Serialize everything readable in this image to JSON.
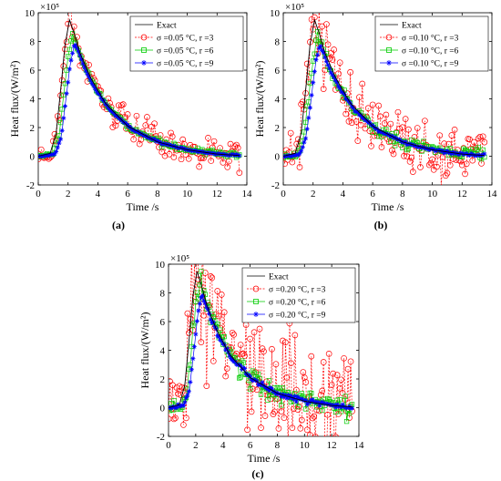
{
  "chart_data": [
    {
      "type": "line",
      "panel_label": "(a)",
      "xlabel": "Time /s",
      "ylabel": "Heat flux/(W/m²)",
      "exponent_label": "×10⁵",
      "xlim": [
        0,
        14
      ],
      "ylim": [
        -2,
        10
      ],
      "xticks": [
        0,
        2,
        4,
        6,
        8,
        10,
        12,
        14
      ],
      "yticks": [
        -2,
        0,
        2,
        4,
        6,
        8,
        10
      ],
      "noise": 0.05,
      "legend": [
        "Exact",
        "σ =0.05 °C, r =3",
        "σ =0.05 °C, r =6",
        "σ =0.05 °C, r =9"
      ],
      "exact_curve": {
        "x": [
          0,
          0.8,
          1.2,
          1.5,
          1.8,
          2.1,
          2.4,
          2.8,
          3.5,
          4.5,
          6,
          8,
          10,
          12,
          13.5
        ],
        "y": [
          0,
          0.2,
          1.6,
          4.6,
          7.8,
          9.5,
          8.6,
          7.2,
          5.5,
          3.7,
          2.1,
          1.0,
          0.45,
          0.15,
          0.05
        ]
      },
      "series": [
        {
          "name": "σ =0.05 °C, r =3",
          "peak": 9.6
        },
        {
          "name": "σ =0.05 °C, r =6",
          "peak": 8.4
        },
        {
          "name": "σ =0.05 °C, r =9",
          "peak": 7.7
        }
      ]
    },
    {
      "type": "line",
      "panel_label": "(b)",
      "xlabel": "Time /s",
      "ylabel": "Heat flux/(W/m²)",
      "exponent_label": "×10⁵",
      "xlim": [
        0,
        14
      ],
      "ylim": [
        -2,
        10
      ],
      "xticks": [
        0,
        2,
        4,
        6,
        8,
        10,
        12,
        14
      ],
      "yticks": [
        -2,
        0,
        2,
        4,
        6,
        8,
        10
      ],
      "noise": 0.1,
      "legend": [
        "Exact",
        "σ =0.10 °C, r =3",
        "σ =0.10 °C, r =6",
        "σ =0.10 °C, r =9"
      ],
      "exact_curve": {
        "x": [
          0,
          0.8,
          1.2,
          1.5,
          1.8,
          2.1,
          2.4,
          2.8,
          3.5,
          4.5,
          6,
          8,
          10,
          12,
          13.5
        ],
        "y": [
          0,
          0.2,
          1.6,
          4.6,
          7.8,
          9.5,
          8.6,
          7.2,
          5.5,
          3.7,
          2.1,
          1.0,
          0.45,
          0.15,
          0.05
        ]
      },
      "series": [
        {
          "name": "σ =0.10 °C, r =3",
          "peak": 10.0
        },
        {
          "name": "σ =0.10 °C, r =6",
          "peak": 8.2
        },
        {
          "name": "σ =0.10 °C, r =9",
          "peak": 7.6
        }
      ]
    },
    {
      "type": "line",
      "panel_label": "(c)",
      "xlabel": "Time /s",
      "ylabel": "Heat flux/(W/m²)",
      "exponent_label": "×10⁵",
      "xlim": [
        0,
        14
      ],
      "ylim": [
        -2,
        10
      ],
      "xticks": [
        0,
        2,
        4,
        6,
        8,
        10,
        12,
        14
      ],
      "yticks": [
        -2,
        0,
        2,
        4,
        6,
        8,
        10
      ],
      "noise": 0.2,
      "legend": [
        "Exact",
        "σ =0.20 °C, r =3",
        "σ =0.20 °C, r =6",
        "σ =0.20 °C, r =9"
      ],
      "exact_curve": {
        "x": [
          0,
          0.8,
          1.2,
          1.5,
          1.8,
          2.1,
          2.4,
          2.8,
          3.5,
          4.5,
          6,
          8,
          10,
          12,
          13.5
        ],
        "y": [
          0,
          0.2,
          1.6,
          4.6,
          7.8,
          9.5,
          8.6,
          7.2,
          5.5,
          3.7,
          2.1,
          1.0,
          0.45,
          0.15,
          0.05
        ]
      },
      "series": [
        {
          "name": "σ =0.20 °C, r =3",
          "peak": 10.2
        },
        {
          "name": "σ =0.20 °C, r =6",
          "peak": 8.8
        },
        {
          "name": "σ =0.20 °C, r =9",
          "peak": 7.7
        }
      ]
    }
  ],
  "colors": {
    "exact": "#000000",
    "r3": "#ff0000",
    "r6": "#00cc00",
    "r9": "#0000ff"
  }
}
